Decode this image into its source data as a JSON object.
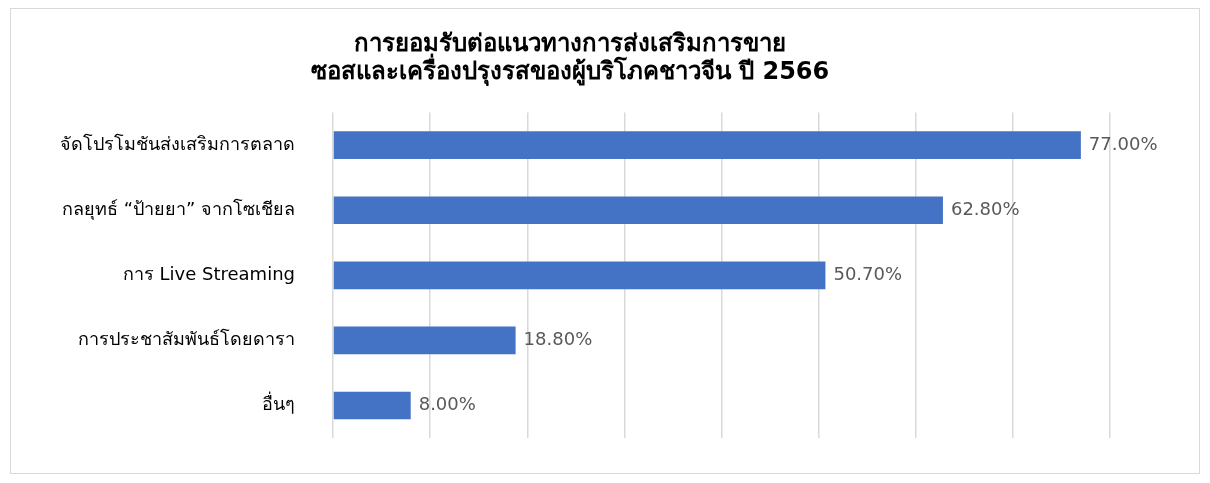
{
  "chart_data": {
    "type": "bar",
    "orientation": "horizontal",
    "title": "การยอมรับต่อแนวทางการส่งเสริมการขาย\nซอสและเครื่องปรุงรสของผู้บริโภคชาวจีน ปี 2566",
    "categories": [
      "จัดโปรโมชันส่งเสริมการตลาด",
      "กลยุทธ์ “ป้ายยา” จากโซเชียล",
      "การ Live Streaming",
      "การประชาสัมพันธ์โดยดารา",
      "อื่นๆ"
    ],
    "values": [
      77,
      62.8,
      50.7,
      18.8,
      8
    ],
    "value_labels": [
      "77.00%",
      "62.80%",
      "50.70%",
      "18.80%",
      "8.00%"
    ],
    "color": "#4472c4",
    "grid": "x",
    "tick_labels": "y",
    "legend": false
  }
}
